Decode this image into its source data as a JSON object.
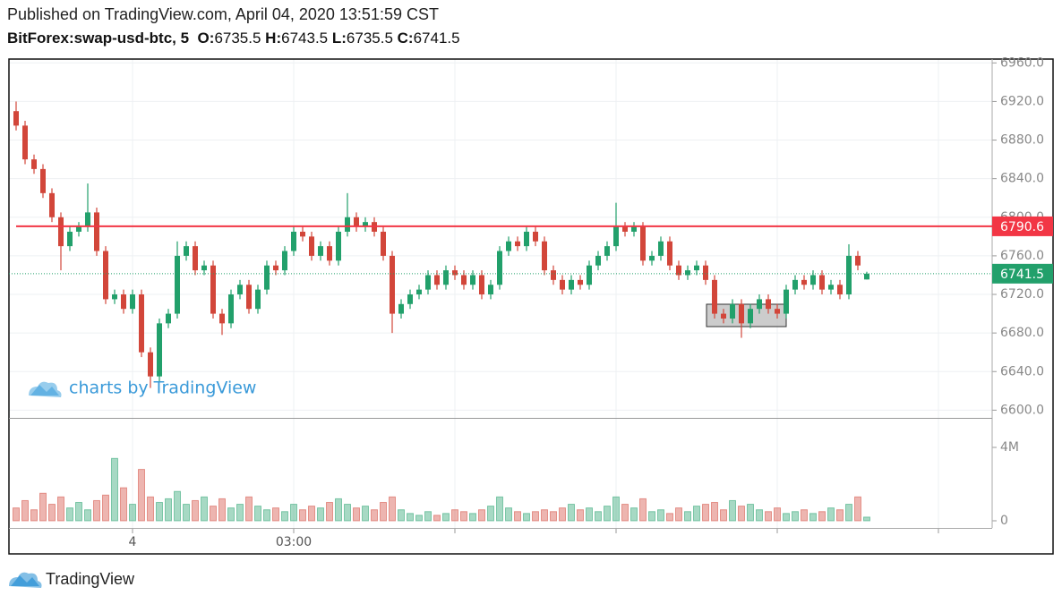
{
  "header": {
    "published": "Published on TradingView.com, April 04, 2020 13:51:59 CST",
    "symbol": "BitForex:swap-usd-btc, 5",
    "open_label": "O:",
    "high_label": "H:",
    "low_label": "L:",
    "close_label": "C:"
  },
  "watermark": "charts by TradingView",
  "footer": "TradingView",
  "chart_data": {
    "type": "candlestick",
    "up_color": "#22a06b",
    "down_color": "#d2463a",
    "categories": [
      null,
      null,
      null,
      null,
      null,
      null,
      null,
      null,
      null,
      null,
      null,
      null,
      null,
      "4",
      null,
      null,
      null,
      null,
      null,
      null,
      null,
      null,
      null,
      null,
      null,
      null,
      null,
      null,
      null,
      null,
      null,
      "03:00",
      null,
      null,
      null,
      null,
      null,
      null,
      null,
      null,
      null,
      null,
      null,
      null,
      null,
      null,
      null,
      null,
      null,
      null,
      null,
      null,
      null,
      null,
      null,
      null,
      null,
      null,
      null,
      null,
      null,
      null,
      null,
      null,
      null,
      null,
      null,
      null,
      null,
      null,
      null,
      null,
      null,
      null,
      null,
      null,
      null,
      null,
      null,
      null,
      null,
      null,
      null,
      null,
      null,
      null,
      null,
      null,
      null,
      null,
      null,
      null,
      null,
      null,
      null,
      null
    ],
    "open": [
      6910,
      6895,
      6860,
      6850,
      6825,
      6800,
      6770,
      6785,
      6790,
      6805,
      6765,
      6715,
      6720,
      6705,
      6720,
      6660,
      6635,
      6690,
      6700,
      6760,
      6770,
      6745,
      6750,
      6700,
      6690,
      6720,
      6730,
      6705,
      6725,
      6750,
      6745,
      6765,
      6785,
      6780,
      6760,
      6770,
      6755,
      6785,
      6800,
      6790,
      6795,
      6785,
      6760,
      6700,
      6710,
      6720,
      6725,
      6740,
      6730,
      6745,
      6740,
      6730,
      6740,
      6720,
      6730,
      6765,
      6775,
      6770,
      6785,
      6775,
      6745,
      6735,
      6725,
      6735,
      6730,
      6750,
      6760,
      6770,
      6790,
      6785,
      6790,
      6755,
      6760,
      6775,
      6750,
      6740,
      6745,
      6750,
      6735,
      6700,
      6695,
      6710,
      6690,
      6705,
      6715,
      6705,
      6700,
      6725,
      6735,
      6730,
      6740,
      6725,
      6730,
      6720,
      6760,
      6735.5
    ],
    "high": [
      6920,
      6900,
      6865,
      6855,
      6830,
      6805,
      6790,
      6795,
      6835,
      6810,
      6770,
      6725,
      6725,
      6725,
      6725,
      6665,
      6695,
      6705,
      6775,
      6775,
      6775,
      6755,
      6755,
      6705,
      6725,
      6735,
      6735,
      6730,
      6755,
      6755,
      6770,
      6790,
      6790,
      6785,
      6775,
      6775,
      6790,
      6825,
      6805,
      6800,
      6800,
      6790,
      6765,
      6715,
      6725,
      6730,
      6745,
      6745,
      6750,
      6750,
      6745,
      6745,
      6745,
      6735,
      6770,
      6780,
      6780,
      6790,
      6790,
      6780,
      6750,
      6740,
      6740,
      6740,
      6755,
      6765,
      6775,
      6815,
      6795,
      6795,
      6795,
      6765,
      6780,
      6780,
      6755,
      6750,
      6755,
      6755,
      6740,
      6705,
      6715,
      6715,
      6710,
      6720,
      6720,
      6710,
      6730,
      6740,
      6740,
      6745,
      6745,
      6735,
      6735,
      6772,
      6765,
      6743.5
    ],
    "low": [
      6890,
      6855,
      6845,
      6820,
      6795,
      6745,
      6765,
      6780,
      6785,
      6760,
      6710,
      6710,
      6700,
      6700,
      6655,
      6623,
      6630,
      6685,
      6695,
      6755,
      6740,
      6740,
      6695,
      6678,
      6685,
      6715,
      6700,
      6700,
      6720,
      6740,
      6740,
      6760,
      6775,
      6755,
      6755,
      6750,
      6750,
      6780,
      6785,
      6785,
      6780,
      6755,
      6680,
      6695,
      6705,
      6715,
      6720,
      6725,
      6725,
      6735,
      6725,
      6725,
      6715,
      6715,
      6725,
      6760,
      6765,
      6765,
      6770,
      6740,
      6730,
      6720,
      6720,
      6725,
      6725,
      6745,
      6755,
      6765,
      6780,
      6780,
      6750,
      6750,
      6755,
      6745,
      6735,
      6735,
      6740,
      6730,
      6695,
      6690,
      6690,
      6675,
      6685,
      6700,
      6700,
      6695,
      6695,
      6720,
      6725,
      6725,
      6720,
      6720,
      6715,
      6715,
      6745,
      6735.5
    ],
    "close": [
      6895,
      6860,
      6850,
      6825,
      6800,
      6770,
      6785,
      6790,
      6805,
      6765,
      6715,
      6720,
      6705,
      6720,
      6660,
      6635,
      6690,
      6700,
      6760,
      6770,
      6745,
      6750,
      6700,
      6690,
      6720,
      6730,
      6705,
      6725,
      6750,
      6745,
      6765,
      6785,
      6780,
      6760,
      6770,
      6755,
      6785,
      6800,
      6790,
      6795,
      6785,
      6760,
      6700,
      6710,
      6720,
      6725,
      6740,
      6730,
      6745,
      6740,
      6730,
      6740,
      6720,
      6730,
      6765,
      6775,
      6770,
      6785,
      6775,
      6745,
      6735,
      6725,
      6735,
      6730,
      6750,
      6760,
      6770,
      6790,
      6785,
      6790,
      6755,
      6760,
      6775,
      6750,
      6740,
      6745,
      6750,
      6735,
      6700,
      6695,
      6710,
      6690,
      6705,
      6715,
      6705,
      6700,
      6725,
      6735,
      6730,
      6740,
      6725,
      6730,
      6720,
      6760,
      6750,
      6741.5
    ],
    "volume": [
      700000,
      1100000,
      600000,
      1500000,
      900000,
      1300000,
      700000,
      1000000,
      600000,
      1100000,
      1400000,
      3400000,
      1800000,
      900000,
      2800000,
      1300000,
      1000000,
      1200000,
      1600000,
      900000,
      1100000,
      1300000,
      800000,
      1200000,
      700000,
      900000,
      1300000,
      800000,
      600000,
      700000,
      500000,
      900000,
      600000,
      800000,
      700000,
      1000000,
      1200000,
      900000,
      700000,
      800000,
      600000,
      1000000,
      1300000,
      600000,
      400000,
      300000,
      500000,
      300000,
      400000,
      600000,
      500000,
      400000,
      600000,
      800000,
      1300000,
      700000,
      500000,
      400000,
      500000,
      600000,
      500000,
      700000,
      900000,
      600000,
      700000,
      500000,
      800000,
      1300000,
      900000,
      700000,
      1200000,
      500000,
      600000,
      400000,
      700000,
      500000,
      800000,
      900000,
      1000000,
      600000,
      1100000,
      800000,
      900000,
      600000,
      500000,
      700000,
      400000,
      500000,
      600000,
      400000,
      500000,
      700000,
      600000,
      900000,
      1300000,
      200000
    ],
    "ylim": [
      6592,
      6964
    ],
    "yticks": [
      {
        "value": 6600,
        "label": "6600.0"
      },
      {
        "value": 6640,
        "label": "6640.0"
      },
      {
        "value": 6680,
        "label": "6680.0"
      },
      {
        "value": 6720,
        "label": "6720.0"
      },
      {
        "value": 6760,
        "label": "6760.0"
      },
      {
        "value": 6800,
        "label": "6800.0"
      },
      {
        "value": 6840,
        "label": "6840.0"
      },
      {
        "value": 6880,
        "label": "6880.0"
      },
      {
        "value": 6920,
        "label": "6920.0"
      },
      {
        "value": 6960,
        "label": "6960.0"
      }
    ],
    "volume_ylim": [
      -390000,
      5560000
    ],
    "volume_yticks": [
      0,
      {
        "value": 4000000,
        "label": "4M"
      }
    ],
    "price_line": {
      "value": 6790.6,
      "color": "#f23645"
    },
    "grid": true
  }
}
